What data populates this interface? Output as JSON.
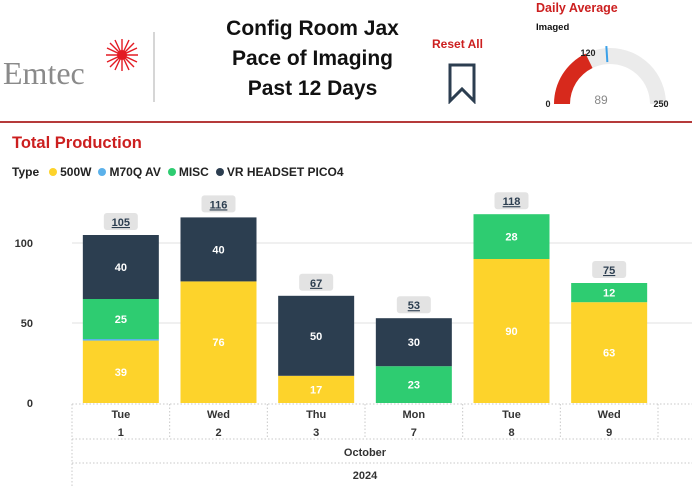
{
  "header": {
    "logo_text": "Emtec",
    "title_lines": [
      "Config Room Jax",
      "Pace of Imaging",
      "Past 12 Days"
    ],
    "reset_label": "Reset All"
  },
  "gauge": {
    "title": "Daily Average",
    "subtitle": "Imaged",
    "min": 0,
    "max": 250,
    "value": 89,
    "target": 120,
    "min_label": "0",
    "max_label": "250",
    "value_label": "89",
    "target_label": "120",
    "colors": {
      "fill": "#d7291c",
      "track": "#ebebeb",
      "target": "#3aa0e8"
    }
  },
  "section": {
    "title": "Total Production"
  },
  "legend": {
    "label": "Type",
    "items": [
      {
        "name": "500W",
        "color": "#fdd32b"
      },
      {
        "name": "M70Q AV",
        "color": "#5bb1ea"
      },
      {
        "name": "MISC",
        "color": "#2ecc71"
      },
      {
        "name": "VR HEADSET PICO4",
        "color": "#2c3e50"
      }
    ]
  },
  "chart_data": {
    "type": "bar",
    "stacked": true,
    "x_day_names": [
      "Tue",
      "Wed",
      "Thu",
      "Mon",
      "Tue",
      "Wed"
    ],
    "x_day_numbers": [
      "1",
      "2",
      "3",
      "7",
      "8",
      "9"
    ],
    "x_month": "October",
    "x_year": "2024",
    "yticks": [
      0,
      50,
      100
    ],
    "ylim": [
      0,
      125
    ],
    "grid": true,
    "series": [
      {
        "name": "500W",
        "color": "#fdd32b",
        "values": [
          39,
          76,
          17,
          0,
          90,
          63
        ]
      },
      {
        "name": "M70Q AV",
        "color": "#5bb1ea",
        "values": [
          1,
          0,
          0,
          0,
          0,
          0
        ]
      },
      {
        "name": "MISC",
        "color": "#2ecc71",
        "values": [
          25,
          0,
          0,
          23,
          28,
          12
        ]
      },
      {
        "name": "VR HEADSET PICO4",
        "color": "#2c3e50",
        "values": [
          40,
          40,
          50,
          30,
          0,
          0
        ]
      }
    ],
    "totals": [
      105,
      116,
      67,
      53,
      118,
      75
    ]
  }
}
